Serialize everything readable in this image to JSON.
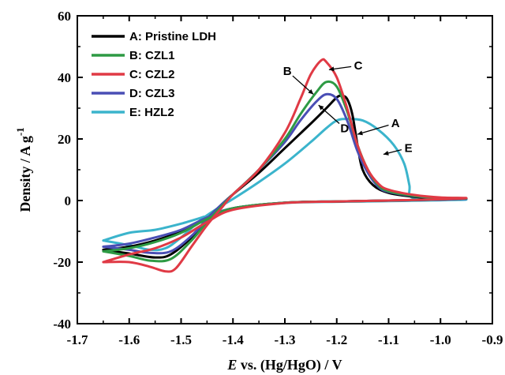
{
  "chart_data": {
    "type": "line",
    "title": "",
    "xlabel_italic": "E",
    "xlabel_rest": " vs. (Hg/HgO) / V",
    "ylabel_main": "Density / A g",
    "ylabel_sup": "-1",
    "xlim": [
      -1.7,
      -0.9
    ],
    "ylim": [
      -40,
      60
    ],
    "xticks": [
      -1.7,
      -1.6,
      -1.5,
      -1.4,
      -1.3,
      -1.2,
      -1.1,
      -1.0,
      -0.9
    ],
    "xtick_labels": [
      "-1.7",
      "-1.6",
      "-1.5",
      "-1.4",
      "-1.3",
      "-1.2",
      "-1.1",
      "-1.0",
      "-0.9"
    ],
    "yticks": [
      -40,
      -20,
      0,
      20,
      40,
      60
    ],
    "ytick_labels": [
      "-40",
      "-20",
      "0",
      "20",
      "40",
      "60"
    ],
    "legend_position": "top-left",
    "series": [
      {
        "name": "A: Pristine LDH",
        "color": "#000000",
        "points": [
          [
            -1.65,
            -16
          ],
          [
            -1.6,
            -17.2
          ],
          [
            -1.55,
            -18.5
          ],
          [
            -1.52,
            -17.5
          ],
          [
            -1.48,
            -12
          ],
          [
            -1.45,
            -6
          ],
          [
            -1.42,
            -1
          ],
          [
            -1.4,
            2
          ],
          [
            -1.35,
            9
          ],
          [
            -1.3,
            17
          ],
          [
            -1.25,
            25
          ],
          [
            -1.22,
            30
          ],
          [
            -1.2,
            33.5
          ],
          [
            -1.19,
            34
          ],
          [
            -1.18,
            33
          ],
          [
            -1.17,
            28
          ],
          [
            -1.16,
            18
          ],
          [
            -1.15,
            10
          ],
          [
            -1.13,
            5
          ],
          [
            -1.1,
            2.5
          ],
          [
            -1.05,
            1.2
          ],
          [
            -1.0,
            0.7
          ],
          [
            -0.95,
            0.6
          ],
          [
            -1.0,
            0.3
          ],
          [
            -1.1,
            0
          ],
          [
            -1.2,
            -0.3
          ],
          [
            -1.3,
            -0.7
          ],
          [
            -1.4,
            -2.5
          ],
          [
            -1.45,
            -6
          ],
          [
            -1.5,
            -10
          ],
          [
            -1.55,
            -13
          ],
          [
            -1.6,
            -15
          ],
          [
            -1.65,
            -16
          ]
        ]
      },
      {
        "name": "B: CZL1",
        "color": "#2e9a44",
        "points": [
          [
            -1.65,
            -16.5
          ],
          [
            -1.6,
            -18
          ],
          [
            -1.56,
            -19.5
          ],
          [
            -1.52,
            -19
          ],
          [
            -1.48,
            -13
          ],
          [
            -1.45,
            -7
          ],
          [
            -1.42,
            -1.5
          ],
          [
            -1.4,
            2
          ],
          [
            -1.35,
            10
          ],
          [
            -1.3,
            20
          ],
          [
            -1.27,
            28
          ],
          [
            -1.24,
            35
          ],
          [
            -1.22,
            38.5
          ],
          [
            -1.2,
            37
          ],
          [
            -1.18,
            29
          ],
          [
            -1.16,
            18
          ],
          [
            -1.14,
            10
          ],
          [
            -1.12,
            5
          ],
          [
            -1.1,
            3
          ],
          [
            -1.05,
            1.5
          ],
          [
            -1.0,
            0.9
          ],
          [
            -0.95,
            0.7
          ],
          [
            -1.0,
            0.4
          ],
          [
            -1.1,
            0
          ],
          [
            -1.2,
            -0.3
          ],
          [
            -1.3,
            -0.7
          ],
          [
            -1.4,
            -2.5
          ],
          [
            -1.45,
            -6
          ],
          [
            -1.5,
            -10.5
          ],
          [
            -1.55,
            -13.5
          ],
          [
            -1.6,
            -15.5
          ],
          [
            -1.65,
            -16.5
          ]
        ]
      },
      {
        "name": "C: CZL2",
        "color": "#e03a45",
        "points": [
          [
            -1.65,
            -20
          ],
          [
            -1.6,
            -20
          ],
          [
            -1.56,
            -21.5
          ],
          [
            -1.53,
            -23
          ],
          [
            -1.51,
            -22
          ],
          [
            -1.48,
            -15
          ],
          [
            -1.45,
            -8
          ],
          [
            -1.42,
            -2
          ],
          [
            -1.4,
            2
          ],
          [
            -1.35,
            10
          ],
          [
            -1.3,
            22
          ],
          [
            -1.27,
            33
          ],
          [
            -1.25,
            41
          ],
          [
            -1.23,
            45.5
          ],
          [
            -1.22,
            45
          ],
          [
            -1.2,
            40
          ],
          [
            -1.18,
            30
          ],
          [
            -1.16,
            18
          ],
          [
            -1.14,
            10
          ],
          [
            -1.12,
            5.5
          ],
          [
            -1.1,
            3.5
          ],
          [
            -1.05,
            1.8
          ],
          [
            -1.0,
            1
          ],
          [
            -0.95,
            0.8
          ],
          [
            -1.0,
            0.4
          ],
          [
            -1.1,
            0
          ],
          [
            -1.2,
            -0.3
          ],
          [
            -1.3,
            -0.8
          ],
          [
            -1.4,
            -3
          ],
          [
            -1.45,
            -7
          ],
          [
            -1.5,
            -12
          ],
          [
            -1.55,
            -15.5
          ],
          [
            -1.6,
            -17.5
          ],
          [
            -1.65,
            -20
          ]
        ]
      },
      {
        "name": "D: CZL3",
        "color": "#4a4eb5",
        "points": [
          [
            -1.65,
            -15
          ],
          [
            -1.6,
            -16
          ],
          [
            -1.56,
            -17
          ],
          [
            -1.52,
            -16.5
          ],
          [
            -1.48,
            -11.5
          ],
          [
            -1.45,
            -6
          ],
          [
            -1.42,
            -1
          ],
          [
            -1.4,
            2
          ],
          [
            -1.35,
            10
          ],
          [
            -1.3,
            19
          ],
          [
            -1.27,
            26
          ],
          [
            -1.24,
            32
          ],
          [
            -1.22,
            34.5
          ],
          [
            -1.2,
            33
          ],
          [
            -1.18,
            26
          ],
          [
            -1.16,
            16
          ],
          [
            -1.14,
            9
          ],
          [
            -1.12,
            4.5
          ],
          [
            -1.1,
            2.8
          ],
          [
            -1.05,
            1.4
          ],
          [
            -1.0,
            0.8
          ],
          [
            -0.95,
            0.6
          ],
          [
            -1.0,
            0.3
          ],
          [
            -1.1,
            0
          ],
          [
            -1.2,
            -0.3
          ],
          [
            -1.3,
            -0.7
          ],
          [
            -1.4,
            -2.5
          ],
          [
            -1.45,
            -5.5
          ],
          [
            -1.5,
            -9.5
          ],
          [
            -1.55,
            -12
          ],
          [
            -1.6,
            -14
          ],
          [
            -1.65,
            -15
          ]
        ]
      },
      {
        "name": "E: HZL2",
        "color": "#3bb4cc",
        "points": [
          [
            -1.65,
            -13
          ],
          [
            -1.6,
            -14.5
          ],
          [
            -1.56,
            -16
          ],
          [
            -1.53,
            -15.5
          ],
          [
            -1.5,
            -12
          ],
          [
            -1.46,
            -6
          ],
          [
            -1.42,
            -1.5
          ],
          [
            -1.4,
            0.5
          ],
          [
            -1.35,
            6
          ],
          [
            -1.3,
            12
          ],
          [
            -1.25,
            19
          ],
          [
            -1.22,
            23.5
          ],
          [
            -1.2,
            26
          ],
          [
            -1.18,
            26.5
          ],
          [
            -1.15,
            26
          ],
          [
            -1.12,
            23
          ],
          [
            -1.09,
            18
          ],
          [
            -1.07,
            12
          ],
          [
            -1.06,
            5
          ],
          [
            -1.055,
            1
          ],
          [
            -1.0,
            0.3
          ],
          [
            -0.95,
            0.3
          ],
          [
            -1.0,
            0.1
          ],
          [
            -1.1,
            -0.2
          ],
          [
            -1.2,
            -0.4
          ],
          [
            -1.3,
            -0.8
          ],
          [
            -1.4,
            -2.5
          ],
          [
            -1.45,
            -5
          ],
          [
            -1.5,
            -7.5
          ],
          [
            -1.55,
            -9.5
          ],
          [
            -1.6,
            -10.5
          ],
          [
            -1.65,
            -13
          ]
        ]
      }
    ],
    "annotations": [
      {
        "text": "A",
        "arrow_from": [
          -1.1,
          24.5
        ],
        "arrow_to": [
          -1.16,
          21.5
        ]
      },
      {
        "text": "B",
        "arrow_from": [
          -1.285,
          40.5
        ],
        "arrow_to": [
          -1.245,
          34.5
        ]
      },
      {
        "text": "C",
        "arrow_from": [
          -1.172,
          43.5
        ],
        "arrow_to": [
          -1.215,
          42.5
        ]
      },
      {
        "text": "D",
        "arrow_from": [
          -1.195,
          25
        ],
        "arrow_to": [
          -1.235,
          31
        ]
      },
      {
        "text": "E",
        "arrow_from": [
          -1.075,
          16.5
        ],
        "arrow_to": [
          -1.11,
          15
        ]
      }
    ]
  }
}
